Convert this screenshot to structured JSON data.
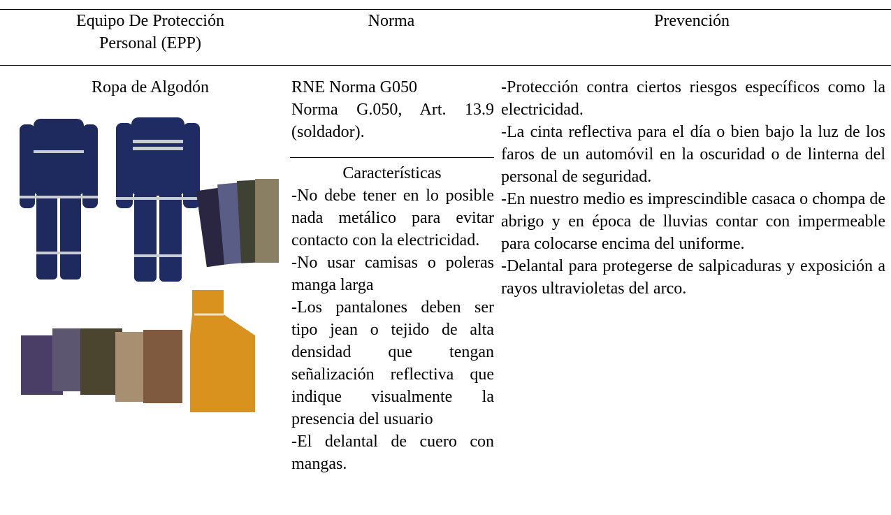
{
  "table": {
    "headers": [
      "Equipo De Protección Personal (EPP)",
      "Norma",
      "Prevención"
    ],
    "item": "Ropa de Algodón",
    "norma": [
      "RNE Norma G050",
      "Norma G.050, Art. 13.9 (soldador)."
    ],
    "caracteristicas_title": "Características",
    "caracteristicas": [
      "-No debe tener en lo posible nada metálico para evitar contacto con la electricidad.",
      "-No usar camisas o poleras manga larga",
      "-Los pantalones deben ser tipo jean o tejido de alta densidad que tengan señalización reflectiva que indique visualmente la presencia del usuario",
      "-El delantal de cuero con mangas."
    ],
    "prevencion": [
      "-Protección contra ciertos riesgos específicos como la electricidad.",
      "-La cinta reflectiva para el día o bien bajo la luz de los faros de un automóvil en la oscuridad o de linterna del personal de seguridad.",
      "-En nuestro medio es imprescindible casaca o chompa de abrigo y en época de lluvias contar con impermeable para colocarse encima del uniforme.",
      "-Delantal para protegerse de salpicaduras y exposición a rayos ultravioletas del arco."
    ]
  }
}
